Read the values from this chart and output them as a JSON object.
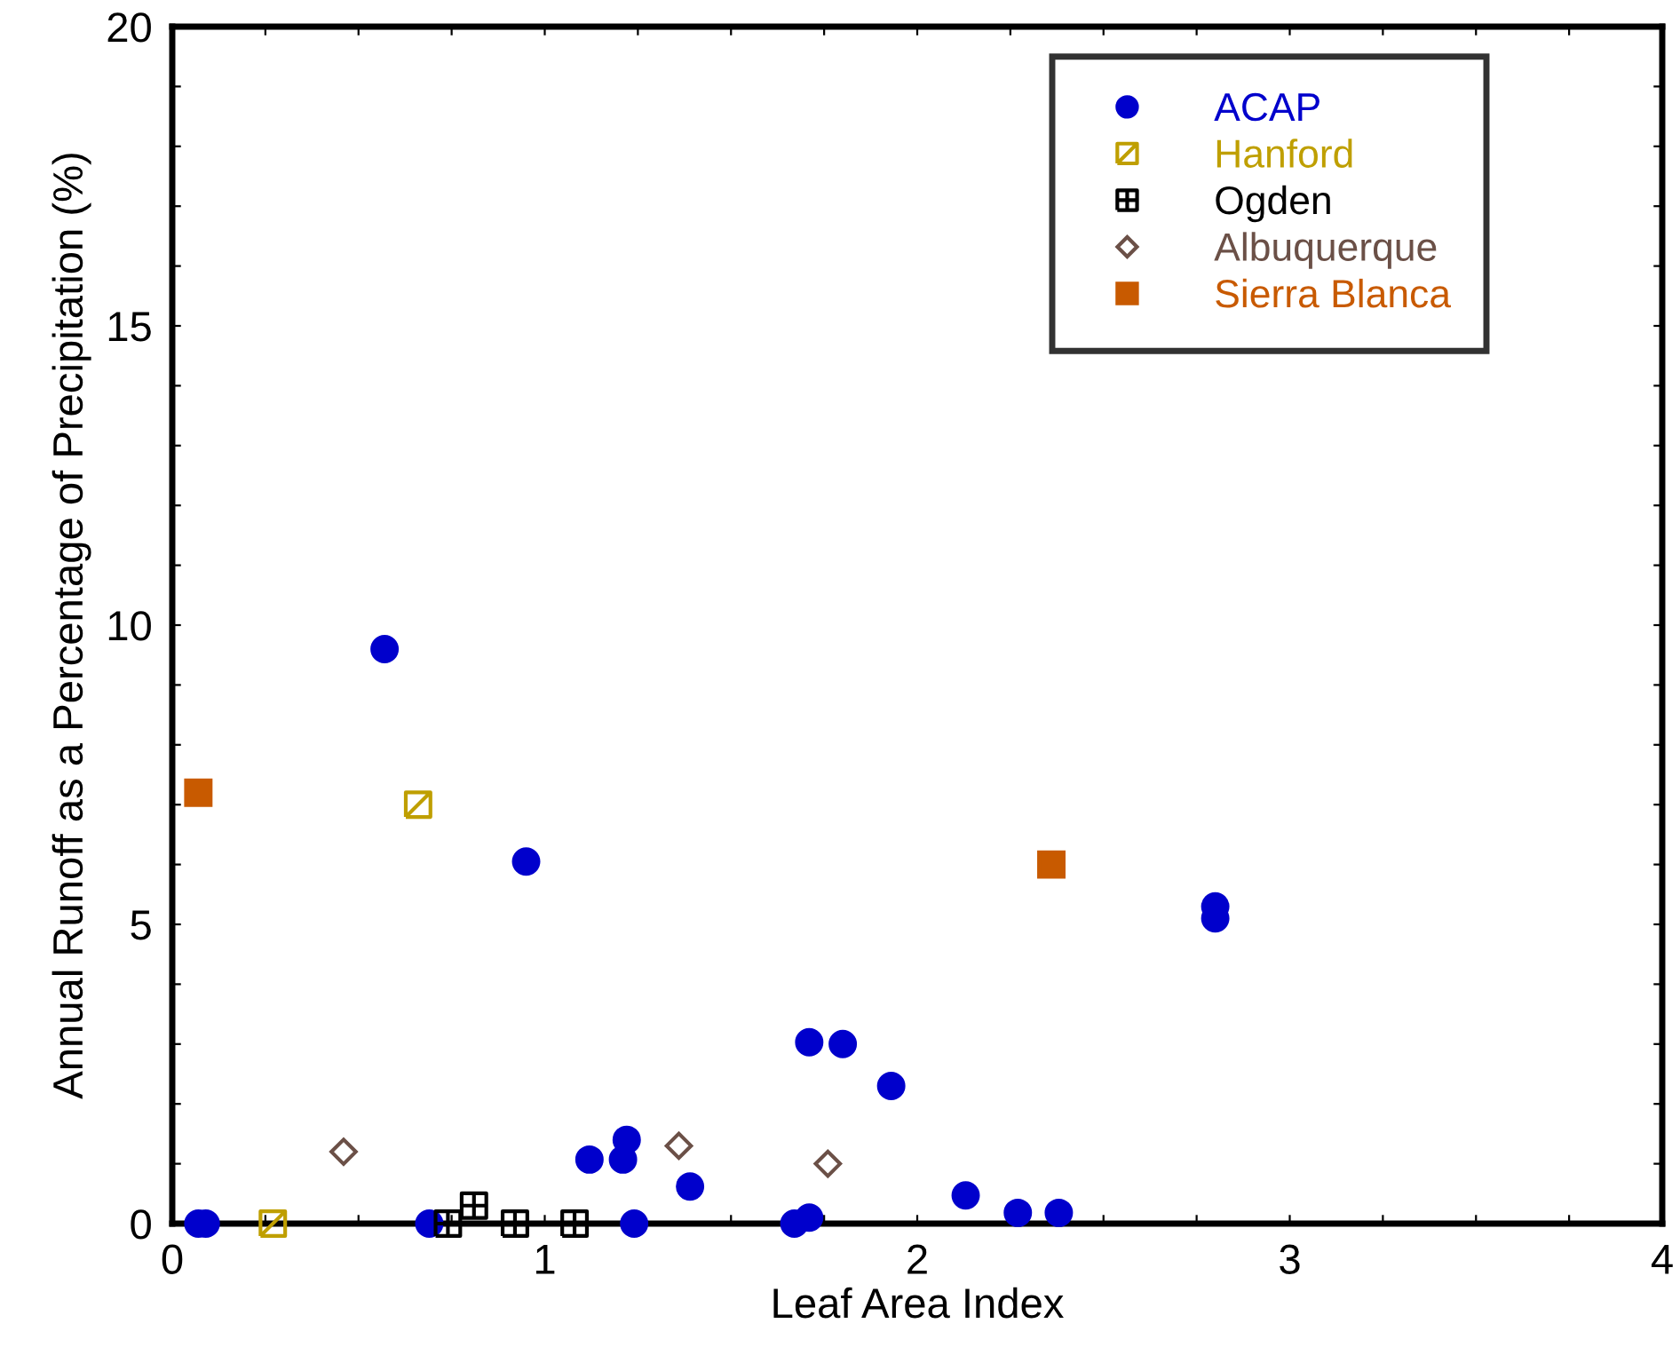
{
  "chart_data": {
    "type": "scatter",
    "xlabel": "Leaf Area Index",
    "ylabel": "Annual Runoff as a Percentage of Precipitation (%)",
    "xlim": [
      0,
      4
    ],
    "ylim": [
      0,
      20
    ],
    "xticks": [
      0,
      {
        "value": 0.25,
        "label": null
      },
      {
        "value": 0.5,
        "label": null
      },
      {
        "value": 0.75,
        "label": null
      },
      1,
      {
        "value": 1.25,
        "label": null
      },
      {
        "value": 1.5,
        "label": null
      },
      {
        "value": 1.75,
        "label": null
      },
      2,
      {
        "value": 2.25,
        "label": null
      },
      {
        "value": 2.5,
        "label": null
      },
      {
        "value": 2.75,
        "label": null
      },
      3,
      {
        "value": 3.25,
        "label": null
      },
      {
        "value": 3.5,
        "label": null
      },
      {
        "value": 3.75,
        "label": null
      },
      4
    ],
    "yticks": [
      0,
      {
        "value": 1,
        "label": null
      },
      {
        "value": 2,
        "label": null
      },
      {
        "value": 3,
        "label": null
      },
      {
        "value": 4,
        "label": null
      },
      5,
      {
        "value": 6,
        "label": null
      },
      {
        "value": 7,
        "label": null
      },
      {
        "value": 8,
        "label": null
      },
      {
        "value": 9,
        "label": null
      },
      10,
      {
        "value": 11,
        "label": null
      },
      {
        "value": 12,
        "label": null
      },
      {
        "value": 13,
        "label": null
      },
      {
        "value": 14,
        "label": null
      },
      15,
      {
        "value": 16,
        "label": null
      },
      {
        "value": 17,
        "label": null
      },
      {
        "value": 18,
        "label": null
      },
      {
        "value": 19,
        "label": null
      },
      20
    ],
    "grid": false,
    "legend": "top right",
    "series": [
      {
        "name": "ACAP",
        "color": "#0000cc",
        "marker": "circle",
        "x": [
          0.07,
          0.09,
          0.57,
          0.69,
          0.95,
          1.12,
          1.21,
          1.22,
          1.24,
          1.39,
          1.67,
          1.71,
          1.71,
          1.8,
          1.93,
          2.13,
          2.27,
          2.38,
          2.8,
          2.8
        ],
        "values": [
          0,
          0,
          9.6,
          0,
          6.05,
          1.07,
          1.07,
          1.4,
          0,
          0.62,
          0,
          0.1,
          3.03,
          3.0,
          2.3,
          0.47,
          0.18,
          0.18,
          5.3,
          5.1
        ]
      },
      {
        "name": "Hanford",
        "color": "#bf9f00",
        "marker": "cross",
        "x": [
          0.27,
          0.66
        ],
        "values": [
          0,
          7.0
        ]
      },
      {
        "name": "Ogden",
        "color": "#000000",
        "marker": "cross",
        "x": [
          0.74,
          0.81,
          0.92,
          1.08
        ],
        "values": [
          0,
          0.3,
          0,
          0
        ]
      },
      {
        "name": "Albuquerque",
        "color": "#6b5047",
        "marker": "diamond",
        "x": [
          0.46,
          1.36,
          1.76
        ],
        "values": [
          1.2,
          1.3,
          1.0
        ]
      },
      {
        "name": "Sierra Blanca",
        "color": "#c85a00",
        "marker": "square",
        "x": [
          0.07,
          2.36
        ],
        "values": [
          7.2,
          6.0
        ]
      }
    ]
  }
}
